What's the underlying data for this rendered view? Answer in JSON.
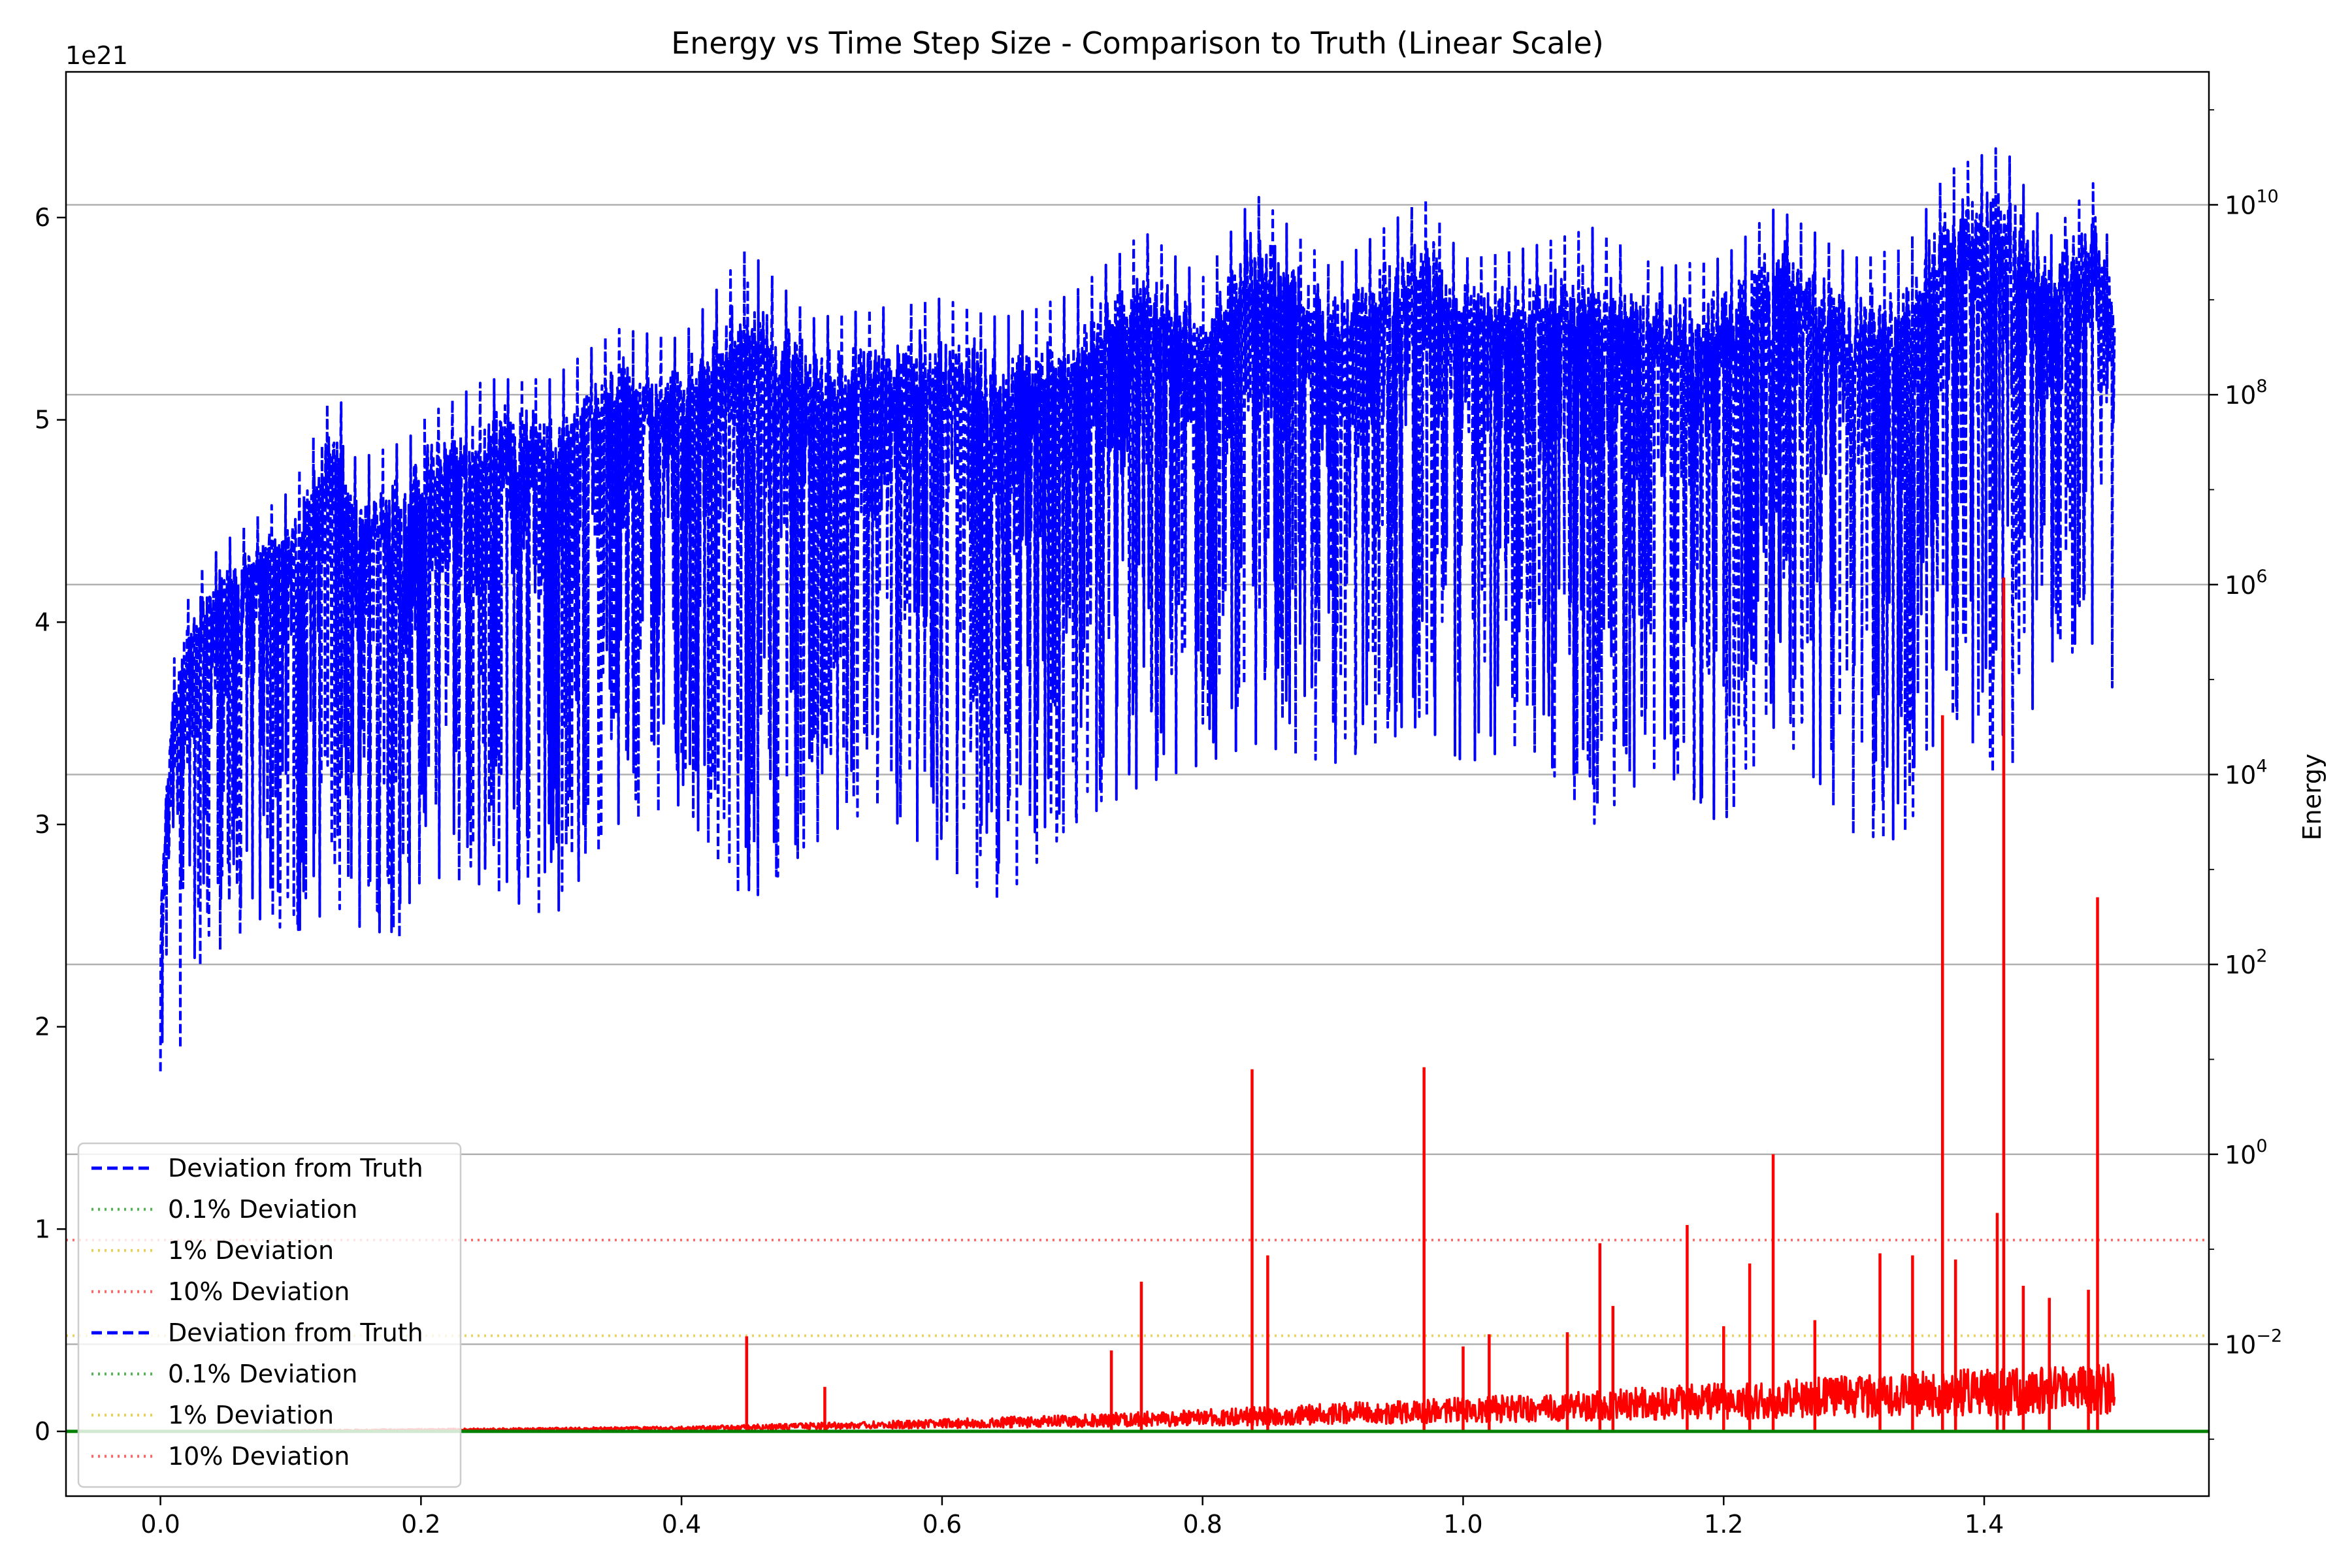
{
  "chart_data": {
    "type": "line",
    "title": "Energy vs Time Step Size - Comparison to Truth (Linear Scale)",
    "xlabel": "",
    "ylabel": "",
    "y2label": "Energy",
    "y_offset_label": "1e21",
    "xlim": [
      -0.0725,
      1.5725
    ],
    "ylim": [
      -0.32,
      6.72
    ],
    "y2lim_log10": [
      -3.6,
      11.4
    ],
    "xticks": [
      {
        "v": 0.0,
        "label": "0.0"
      },
      {
        "v": 0.2,
        "label": "0.2"
      },
      {
        "v": 0.4,
        "label": "0.4"
      },
      {
        "v": 0.6,
        "label": "0.6"
      },
      {
        "v": 0.8,
        "label": "0.8"
      },
      {
        "v": 1.0,
        "label": "1.0"
      },
      {
        "v": 1.2,
        "label": "1.2"
      },
      {
        "v": 1.4,
        "label": "1.4"
      }
    ],
    "yticks": [
      {
        "v": 0,
        "label": "0"
      },
      {
        "v": 1,
        "label": "1"
      },
      {
        "v": 2,
        "label": "2"
      },
      {
        "v": 3,
        "label": "3"
      },
      {
        "v": 4,
        "label": "4"
      },
      {
        "v": 5,
        "label": "5"
      },
      {
        "v": 6,
        "label": "6"
      }
    ],
    "y2ticks": [
      {
        "exp": -2,
        "label": "10",
        "sup": "−2"
      },
      {
        "exp": 0,
        "label": "10",
        "sup": "0"
      },
      {
        "exp": 2,
        "label": "10",
        "sup": "2"
      },
      {
        "exp": 4,
        "label": "10",
        "sup": "4"
      },
      {
        "exp": 6,
        "label": "10",
        "sup": "6"
      },
      {
        "exp": 8,
        "label": "10",
        "sup": "8"
      },
      {
        "exp": 10,
        "label": "10",
        "sup": "10"
      }
    ],
    "grid": "horizontal, right axis",
    "legend_position": "lower-left",
    "colors": {
      "deviation": "#0000ff",
      "energy": "#ff0000",
      "truth": "#008000",
      "dev_0_1": "#2ca02c",
      "dev_1": "#e3c42b",
      "dev_10": "#ff4040",
      "grid": "#b0b0b0"
    },
    "deviation_lines": [
      {
        "name": "0.1% Deviation",
        "y": 0.0
      },
      {
        "name": "1% Deviation",
        "y": 0.473
      },
      {
        "name": "10% Deviation",
        "y": 0.946
      }
    ],
    "series": [
      {
        "name": "Deviation from Truth",
        "style": "dashed",
        "axis": "left",
        "envelope": [
          {
            "x": 0.0,
            "upper": 2.6,
            "lower": 1.78
          },
          {
            "x": 0.005,
            "upper": 3.35,
            "lower": 2.1
          },
          {
            "x": 0.01,
            "upper": 3.8,
            "lower": 1.55
          },
          {
            "x": 0.02,
            "upper": 4.1,
            "lower": 2.2
          },
          {
            "x": 0.03,
            "upper": 4.25,
            "lower": 2.3
          },
          {
            "x": 0.05,
            "upper": 4.4,
            "lower": 2.4
          },
          {
            "x": 0.08,
            "upper": 4.55,
            "lower": 2.55
          },
          {
            "x": 0.1,
            "upper": 4.65,
            "lower": 2.45
          },
          {
            "x": 0.135,
            "upper": 5.18,
            "lower": 2.6
          },
          {
            "x": 0.15,
            "upper": 4.8,
            "lower": 2.5
          },
          {
            "x": 0.19,
            "upper": 4.9,
            "lower": 2.43
          },
          {
            "x": 0.2,
            "upper": 5.0,
            "lower": 2.75
          },
          {
            "x": 0.25,
            "upper": 5.2,
            "lower": 2.7
          },
          {
            "x": 0.3,
            "upper": 5.2,
            "lower": 2.52
          },
          {
            "x": 0.35,
            "upper": 5.45,
            "lower": 3.0
          },
          {
            "x": 0.4,
            "upper": 5.4,
            "lower": 3.1
          },
          {
            "x": 0.45,
            "upper": 5.85,
            "lower": 2.6
          },
          {
            "x": 0.5,
            "upper": 5.5,
            "lower": 2.9
          },
          {
            "x": 0.55,
            "upper": 5.55,
            "lower": 3.1
          },
          {
            "x": 0.6,
            "upper": 5.6,
            "lower": 2.8
          },
          {
            "x": 0.645,
            "upper": 5.5,
            "lower": 2.62
          },
          {
            "x": 0.7,
            "upper": 5.62,
            "lower": 3.0
          },
          {
            "x": 0.755,
            "upper": 5.93,
            "lower": 3.2
          },
          {
            "x": 0.8,
            "upper": 5.7,
            "lower": 3.3
          },
          {
            "x": 0.84,
            "upper": 6.12,
            "lower": 3.4
          },
          {
            "x": 0.9,
            "upper": 5.75,
            "lower": 3.3
          },
          {
            "x": 0.97,
            "upper": 6.1,
            "lower": 3.5
          },
          {
            "x": 1.0,
            "upper": 5.8,
            "lower": 3.3
          },
          {
            "x": 1.05,
            "upper": 5.85,
            "lower": 3.4
          },
          {
            "x": 1.1,
            "upper": 5.95,
            "lower": 3.0
          },
          {
            "x": 1.15,
            "upper": 5.75,
            "lower": 3.3
          },
          {
            "x": 1.2,
            "upper": 5.8,
            "lower": 2.98
          },
          {
            "x": 1.24,
            "upper": 6.05,
            "lower": 3.5
          },
          {
            "x": 1.3,
            "upper": 5.8,
            "lower": 2.95
          },
          {
            "x": 1.34,
            "upper": 5.85,
            "lower": 2.92
          },
          {
            "x": 1.37,
            "upper": 6.22,
            "lower": 3.6
          },
          {
            "x": 1.415,
            "upper": 6.36,
            "lower": 3.18
          },
          {
            "x": 1.45,
            "upper": 5.9,
            "lower": 3.8
          },
          {
            "x": 1.485,
            "upper": 6.18,
            "lower": 3.9
          },
          {
            "x": 1.5,
            "upper": 5.75,
            "lower": 3.65
          }
        ]
      },
      {
        "name": "Energy",
        "style": "solid",
        "axis": "left",
        "baseline": [
          {
            "x": 0.0,
            "y": 0.0
          },
          {
            "x": 0.2,
            "y": 0.01
          },
          {
            "x": 0.4,
            "y": 0.02
          },
          {
            "x": 0.6,
            "y": 0.05
          },
          {
            "x": 0.8,
            "y": 0.09
          },
          {
            "x": 1.0,
            "y": 0.14
          },
          {
            "x": 1.2,
            "y": 0.2
          },
          {
            "x": 1.4,
            "y": 0.26
          },
          {
            "x": 1.5,
            "y": 0.28
          }
        ],
        "spikes": [
          {
            "x": 0.45,
            "y": 0.47
          },
          {
            "x": 0.51,
            "y": 0.22
          },
          {
            "x": 0.73,
            "y": 0.4
          },
          {
            "x": 0.753,
            "y": 0.74
          },
          {
            "x": 0.838,
            "y": 1.79
          },
          {
            "x": 0.85,
            "y": 0.87
          },
          {
            "x": 0.97,
            "y": 1.8
          },
          {
            "x": 1.0,
            "y": 0.42
          },
          {
            "x": 1.02,
            "y": 0.48
          },
          {
            "x": 1.08,
            "y": 0.49
          },
          {
            "x": 1.105,
            "y": 0.93
          },
          {
            "x": 1.115,
            "y": 0.62
          },
          {
            "x": 1.172,
            "y": 1.02
          },
          {
            "x": 1.2,
            "y": 0.52
          },
          {
            "x": 1.22,
            "y": 0.83
          },
          {
            "x": 1.238,
            "y": 1.37
          },
          {
            "x": 1.27,
            "y": 0.55
          },
          {
            "x": 1.32,
            "y": 0.88
          },
          {
            "x": 1.345,
            "y": 0.87
          },
          {
            "x": 1.368,
            "y": 3.54
          },
          {
            "x": 1.378,
            "y": 0.85
          },
          {
            "x": 1.41,
            "y": 1.08
          },
          {
            "x": 1.415,
            "y": 4.22
          },
          {
            "x": 1.43,
            "y": 0.72
          },
          {
            "x": 1.45,
            "y": 0.66
          },
          {
            "x": 1.48,
            "y": 0.7
          },
          {
            "x": 1.487,
            "y": 2.64
          }
        ]
      },
      {
        "name": "Truth",
        "style": "solid",
        "axis": "left",
        "y": 0.0
      }
    ],
    "legend": [
      {
        "label": "Deviation from Truth",
        "color": "#0000ff",
        "dash": "dashed"
      },
      {
        "label": "0.1% Deviation",
        "color": "#2ca02c",
        "dash": "dotted"
      },
      {
        "label": "1% Deviation",
        "color": "#e3c42b",
        "dash": "dotted"
      },
      {
        "label": "10% Deviation",
        "color": "#ff4040",
        "dash": "dotted"
      },
      {
        "label": "Deviation from Truth",
        "color": "#0000ff",
        "dash": "dashed"
      },
      {
        "label": "0.1% Deviation",
        "color": "#2ca02c",
        "dash": "dotted"
      },
      {
        "label": "1% Deviation",
        "color": "#e3c42b",
        "dash": "dotted"
      },
      {
        "label": "10% Deviation",
        "color": "#ff4040",
        "dash": "dotted"
      }
    ]
  }
}
